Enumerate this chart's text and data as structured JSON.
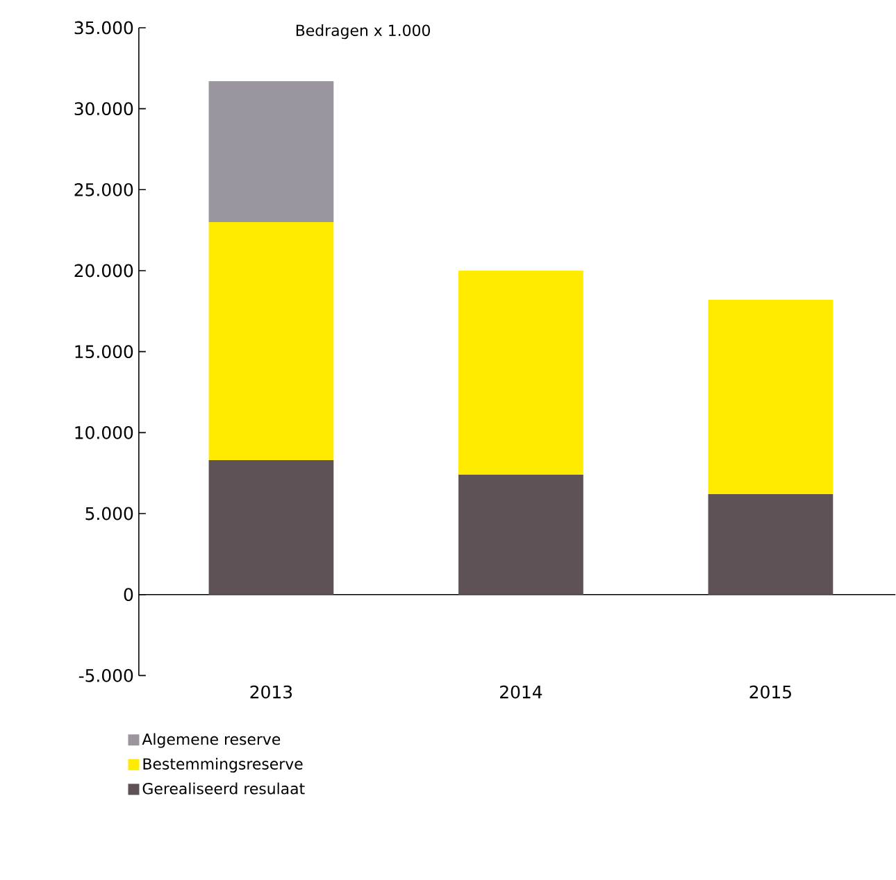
{
  "chart_data": {
    "type": "bar",
    "stacked": true,
    "title": "Bedragen x 1.000",
    "categories": [
      "2013",
      "2014",
      "2015"
    ],
    "series": [
      {
        "name": "Gerealiseerd resulaat",
        "color": "#5e5256",
        "values": [
          8300,
          7400,
          6200
        ]
      },
      {
        "name": "Bestemmingsreserve",
        "color": "#ffeb00",
        "values": [
          14700,
          12600,
          12000
        ]
      },
      {
        "name": "Algemene reserve",
        "color": "#9a959e",
        "values": [
          8700,
          0,
          0
        ]
      }
    ],
    "ylim": [
      -5000,
      35000
    ],
    "yticks": [
      {
        "value": -5000,
        "label": "-5.000"
      },
      0,
      {
        "value": 5000,
        "label": "5.000"
      },
      {
        "value": 10000,
        "label": "10.000"
      },
      {
        "value": 15000,
        "label": "15.000"
      },
      {
        "value": 20000,
        "label": "20.000"
      },
      {
        "value": 25000,
        "label": "25.000"
      },
      {
        "value": 30000,
        "label": "30.000"
      },
      {
        "value": 35000,
        "label": "35.000"
      }
    ],
    "legend": "bottom left"
  }
}
